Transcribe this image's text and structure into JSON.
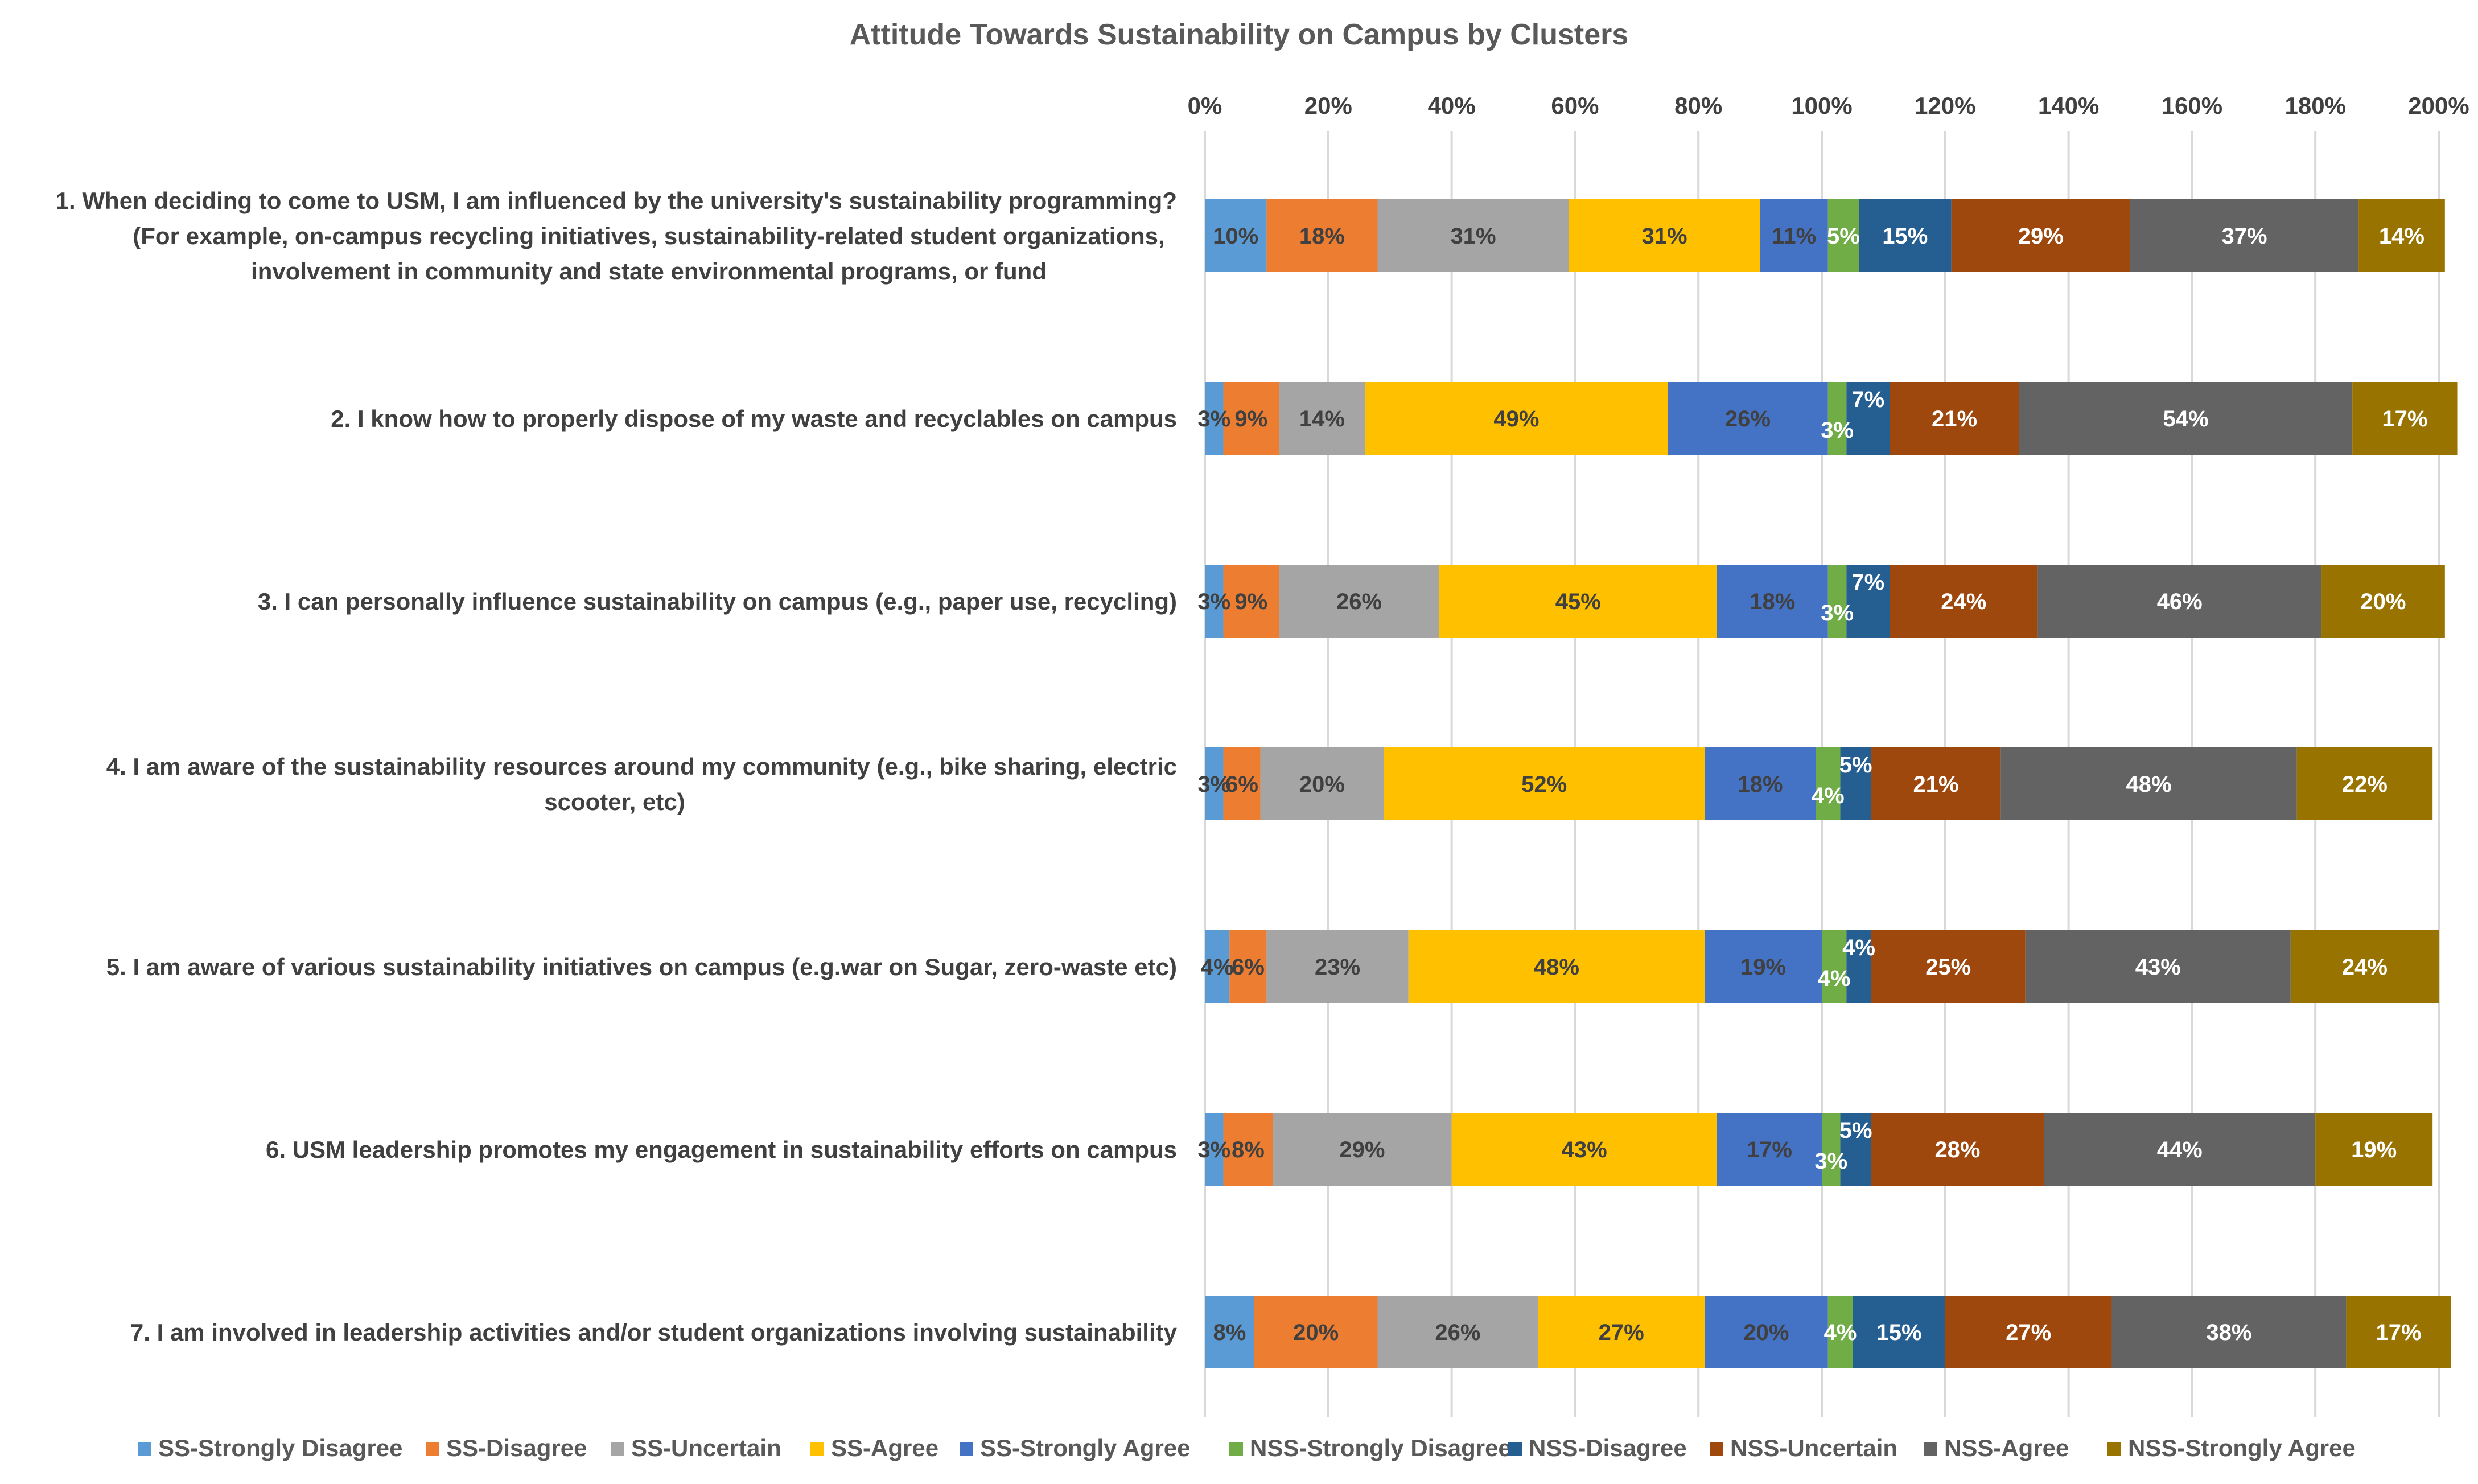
{
  "chart_data": {
    "type": "bar",
    "orientation": "horizontal",
    "stacked": true,
    "title": "Attitude Towards Sustainability on Campus by Clusters",
    "xlabel": "",
    "ylabel": "",
    "xlim": [
      0,
      200
    ],
    "x_ticks": [
      "0%",
      "20%",
      "40%",
      "60%",
      "80%",
      "100%",
      "120%",
      "140%",
      "160%",
      "180%",
      "200%"
    ],
    "x_axis_position": "top",
    "grid": true,
    "legend_position": "bottom",
    "categories": [
      [
        "1. When deciding to come to USM, I am influenced by the university's sustainability programming?",
        "(For example, on-campus recycling initiatives, sustainability-related student organizations,",
        "involvement in community and state environmental programs, or fund"
      ],
      [
        "2. I know how to properly dispose of my waste and recyclables on campus"
      ],
      [
        "3. I can personally influence sustainability on campus (e.g., paper use, recycling)"
      ],
      [
        "4. I am aware of the sustainability resources around my community (e.g., bike sharing, electric",
        "scooter, etc)"
      ],
      [
        "5. I am aware of various sustainability initiatives on campus (e.g.war on Sugar, zero-waste etc)"
      ],
      [
        "6. USM leadership promotes my engagement in sustainability efforts on campus"
      ],
      [
        "7. I am involved in leadership activities and/or student organizations involving sustainability"
      ]
    ],
    "series": [
      {
        "name": "SS-Strongly Disagree",
        "color": "#5B9BD5",
        "label_color": "#404040",
        "values": [
          10,
          3,
          3,
          3,
          4,
          3,
          8
        ],
        "labels": [
          "10%",
          "3%",
          "3%",
          "3%",
          "4%",
          "3%",
          "8%"
        ]
      },
      {
        "name": "SS-Disagree",
        "color": "#ED7D31",
        "label_color": "#404040",
        "values": [
          18,
          9,
          9,
          6,
          6,
          8,
          20
        ],
        "labels": [
          "18%",
          "9%",
          "9%",
          "6%",
          "6%",
          "8%",
          "20%"
        ]
      },
      {
        "name": "SS-Uncertain",
        "color": "#A5A5A5",
        "label_color": "#404040",
        "values": [
          31,
          14,
          26,
          20,
          23,
          29,
          26
        ],
        "labels": [
          "31%",
          "14%",
          "26%",
          "20%",
          "23%",
          "29%",
          "26%"
        ]
      },
      {
        "name": "SS-Agree",
        "color": "#FFC000",
        "label_color": "#404040",
        "values": [
          31,
          49,
          45,
          52,
          48,
          43,
          27
        ],
        "labels": [
          "31%",
          "49%",
          "45%",
          "52%",
          "48%",
          "43%",
          "27%"
        ]
      },
      {
        "name": "SS-Strongly Agree",
        "color": "#4472C4",
        "label_color": "#404040",
        "values": [
          11,
          26,
          18,
          18,
          19,
          17,
          20
        ],
        "labels": [
          "11%",
          "26%",
          "18%",
          "18%",
          "19%",
          "17%",
          "20%"
        ]
      },
      {
        "name": "NSS-Strongly Disagree",
        "color": "#70AD47",
        "label_color": "#ffffff",
        "values": [
          5,
          3,
          3,
          4,
          4,
          3,
          4
        ],
        "labels": [
          "5%",
          "3%",
          "3%",
          "4%",
          "4%",
          "3%",
          "4%"
        ]
      },
      {
        "name": "NSS-Disagree",
        "color": "#255E91",
        "label_color": "#ffffff",
        "values": [
          15,
          7,
          7,
          5,
          4,
          5,
          15
        ],
        "labels": [
          "15%",
          "7%",
          "7%",
          "5%",
          "4%",
          "5%",
          "15%"
        ]
      },
      {
        "name": "NSS-Uncertain",
        "color": "#9E480E",
        "label_color": "#ffffff",
        "values": [
          29,
          21,
          24,
          21,
          25,
          28,
          27
        ],
        "labels": [
          "29%",
          "21%",
          "24%",
          "21%",
          "25%",
          "28%",
          "27%"
        ]
      },
      {
        "name": "NSS-Agree",
        "color": "#636363",
        "label_color": "#ffffff",
        "values": [
          37,
          54,
          46,
          48,
          43,
          44,
          38
        ],
        "labels": [
          "37%",
          "54%",
          "46%",
          "48%",
          "43%",
          "44%",
          "38%"
        ]
      },
      {
        "name": "NSS-Strongly Agree",
        "color": "#997300",
        "label_color": "#ffffff",
        "values": [
          14,
          17,
          20,
          22,
          24,
          19,
          17
        ],
        "labels": [
          "14%",
          "17%",
          "20%",
          "22%",
          "24%",
          "19%",
          "17%"
        ]
      }
    ]
  }
}
